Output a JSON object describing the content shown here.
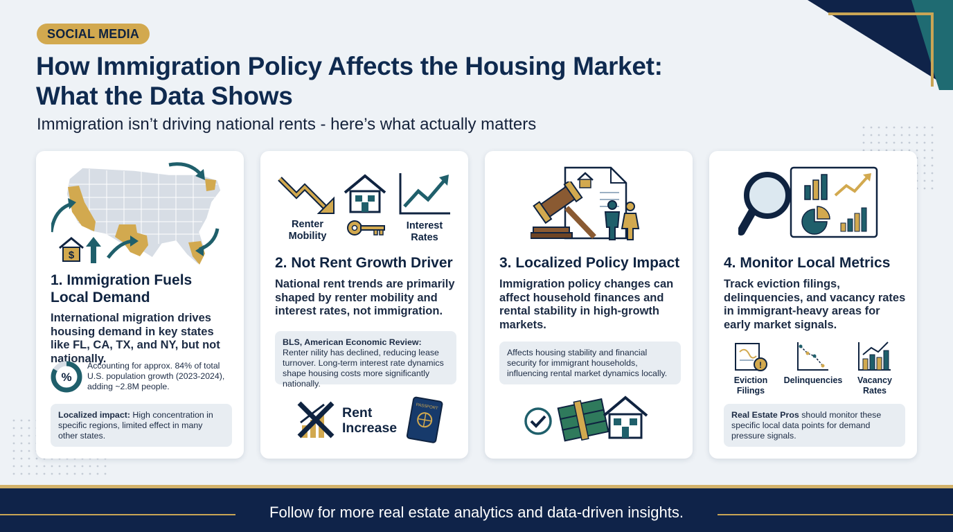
{
  "badge": "SOCIAL MEDIA",
  "title_line1": "How Immigration Policy Affects the Housing Market:",
  "title_line2": "What the Data Shows",
  "subtitle": "Immigration isn’t driving national rents - here’s what actually matters",
  "colors": {
    "navy": "#0f2349",
    "gold": "#d2a94f",
    "teal": "#1f5f6b",
    "card": "#ffffff"
  },
  "card1": {
    "icons": [
      "us-map-icon",
      "house-dollar-icon",
      "arrow-icon"
    ],
    "title_line1": "1. Immigration Fuels",
    "title_line2": "Local Demand",
    "body": "International migration drives housing demand in key states like FL, CA, TX, and NY, but not nationally.",
    "stat": "Accounting for approx. 84% of total U.S. population growth (2023-2024), adding ~2.8M people.",
    "note_bold": "Localized impact:",
    "note_text": " High concentration in specific regions, limited effect in many other states."
  },
  "card2": {
    "icon_label_1": "Renter Mobility",
    "icon_label_2": "Interest Rates",
    "title": "2. Not Rent Growth Driver",
    "body": "National rent trends are primarily shaped by renter mobility and interest rates, not immigration.",
    "note_bold": "BLS, American Economic Review:",
    "note_text": " Renter nility has declined, reducing lease turnover. Long-term interest rate dynamics shape housing costs more significantly nationally.",
    "rent_label_1": "Rent",
    "rent_label_2": "Increase",
    "passport_text": "PASSPORT"
  },
  "card3": {
    "title": "3. Localized Policy Impact",
    "body": "Immigration policy changes can affect household finances and rental stability in high-growth markets.",
    "note_text": "Affects housing stability and financial security for immigrant households, influencing rental market dynamics locally."
  },
  "card4": {
    "title": "4. Monitor Local Metrics",
    "body": "Track eviction filings, delinquencies, and vacancy rates in immigrant-heavy areas for early market signals.",
    "metric_1": "Eviction Filings",
    "metric_2": "Delinquencies",
    "metric_3": "Vacancy Rates",
    "note_bold": "Real Estate Pros",
    "note_text": " should monitor these specific local data points for demand pressure signals."
  },
  "footer": "Follow for more real estate analytics and data-driven insights."
}
